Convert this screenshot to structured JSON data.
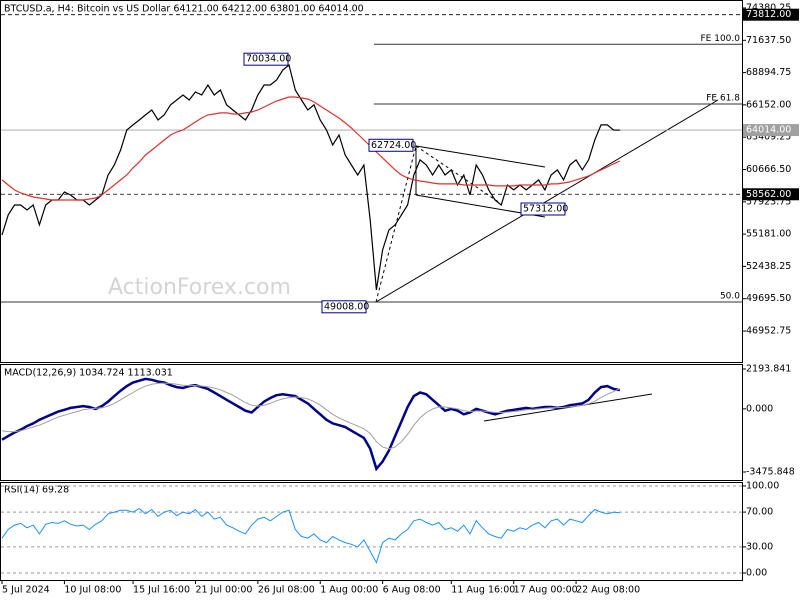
{
  "chart_data": [
    {
      "type": "line",
      "title": "BTCUSD.a, H4:  Bitcoin vs US Dollar  64121.00 64212.00 63801.00 64014.00",
      "watermark": "ActionForex.com",
      "categories": [
        "5 Jul 2024",
        null,
        null,
        null,
        null,
        null,
        null,
        null,
        null,
        null,
        "10 Jul 08:00",
        null,
        null,
        null,
        null,
        null,
        null,
        null,
        null,
        null,
        null,
        "15 Jul 16:00",
        null,
        null,
        null,
        null,
        null,
        null,
        null,
        null,
        null,
        "21 Jul 00:00",
        null,
        null,
        null,
        null,
        null,
        null,
        null,
        null,
        null,
        "26 Jul 08:00",
        null,
        null,
        null,
        null,
        null,
        null,
        null,
        null,
        null,
        "1 Aug 00:00",
        null,
        null,
        null,
        null,
        null,
        null,
        null,
        null,
        null,
        "6 Aug 08:00",
        null,
        null,
        null,
        null,
        null,
        null,
        null,
        null,
        null,
        null,
        "11 Aug 16:00",
        null,
        null,
        null,
        null,
        null,
        null,
        null,
        null,
        null,
        "17 Aug 00:00",
        null,
        null,
        null,
        null,
        null,
        null,
        null,
        null,
        null,
        "22 Aug 08:00",
        null,
        null,
        null,
        null,
        null,
        null,
        null
      ],
      "series": [
        {
          "color": "#000000",
          "values": [
            55110,
            56810,
            57650,
            57650,
            57230,
            57650,
            55960,
            57650,
            58080,
            58080,
            58760,
            58500,
            58080,
            58080,
            57650,
            58080,
            58500,
            60200,
            61050,
            62320,
            64020,
            64450,
            64870,
            65300,
            65720,
            64870,
            65300,
            66150,
            66570,
            66990,
            66570,
            67250,
            66990,
            67840,
            66990,
            67420,
            66150,
            65720,
            65300,
            64870,
            65720,
            66990,
            67840,
            67840,
            68270,
            69120,
            69540,
            67420,
            66570,
            65720,
            66150,
            64870,
            64020,
            62750,
            63600,
            61900,
            61050,
            60200,
            61050,
            56380,
            50440,
            53830,
            55530,
            55960,
            56810,
            57650,
            60200,
            61480,
            61050,
            60200,
            61050,
            60200,
            60630,
            59350,
            60200,
            58500,
            61050,
            60200,
            58930,
            58080,
            57650,
            59350,
            58930,
            59350,
            58930,
            59350,
            59780,
            58930,
            60200,
            60630,
            59780,
            61050,
            61480,
            60630,
            61480,
            63170,
            64450,
            64450,
            64020,
            64014
          ]
        },
        {
          "color": "#e03030",
          "values": [
            59780,
            59350,
            58930,
            58670,
            58500,
            58330,
            58250,
            58160,
            58080,
            58080,
            58080,
            58080,
            58080,
            58080,
            58160,
            58250,
            58500,
            58930,
            59350,
            59780,
            60200,
            60800,
            61310,
            61900,
            62320,
            62750,
            63170,
            63600,
            63850,
            64020,
            64360,
            64700,
            65040,
            65300,
            65380,
            65470,
            65470,
            65380,
            65380,
            65470,
            65550,
            65720,
            65970,
            66230,
            66480,
            66650,
            66820,
            66820,
            66740,
            66650,
            66400,
            66060,
            65720,
            65380,
            65040,
            64620,
            64190,
            63680,
            63170,
            62660,
            62150,
            61650,
            61140,
            60630,
            60200,
            59950,
            59780,
            59690,
            59610,
            59520,
            59440,
            59440,
            59440,
            59440,
            59350,
            59350,
            59350,
            59350,
            59350,
            59270,
            59270,
            59270,
            59270,
            59350,
            59350,
            59350,
            59350,
            59350,
            59440,
            59440,
            59520,
            59610,
            59780,
            59950,
            60120,
            60370,
            60630,
            60880,
            61140,
            61390
          ]
        }
      ],
      "ylim": [
        44320,
        75060
      ],
      "yticks": [
        {
          "value": 74380.25,
          "label": "74380.25"
        },
        {
          "value": 71637.5,
          "label": "71637.50"
        },
        {
          "value": 68894.75,
          "label": "68894.75"
        },
        {
          "value": 66152,
          "label": "66152.00"
        },
        {
          "value": 63409.25,
          "label": "63409.25"
        },
        {
          "value": 60666.5,
          "label": "60666.50"
        },
        {
          "value": 57923.75,
          "label": "57923.75"
        },
        {
          "value": 55181,
          "label": "55181.00"
        },
        {
          "value": 52438.25,
          "label": "52438.25"
        },
        {
          "value": 49695.5,
          "label": "49695.50"
        },
        {
          "value": 46952.75,
          "label": "46952.75"
        }
      ],
      "price_lines": [
        {
          "value": 73812,
          "label": "73812.00",
          "color": "#000000"
        },
        {
          "value": 64014,
          "label": "64014.00",
          "color": "#a0a0a0"
        },
        {
          "value": 58562,
          "label": "58562.00",
          "color": "#000000"
        }
      ],
      "levels": [
        {
          "value": 71300,
          "label": "FE 100.0"
        },
        {
          "value": 66230,
          "label": "FE 61.8"
        },
        {
          "value": 49420,
          "label": "50.0"
        }
      ],
      "annotations": [
        {
          "value": 70034,
          "label": "70034.00"
        },
        {
          "value": 62724,
          "label": "62724.00"
        },
        {
          "value": 49008,
          "label": "49008.00"
        },
        {
          "value": 57312,
          "label": "57312.00"
        }
      ]
    },
    {
      "type": "line",
      "title": "MACD(12,26,9) 1034.724 1113.031",
      "series": [
        {
          "color": "#00008b",
          "width": 2.5,
          "values": [
            -1700,
            -1500,
            -1300,
            -1150,
            -950,
            -800,
            -600,
            -450,
            -300,
            -150,
            -50,
            50,
            100,
            150,
            100,
            0,
            150,
            400,
            700,
            1000,
            1250,
            1450,
            1550,
            1650,
            1600,
            1500,
            1450,
            1300,
            1200,
            1150,
            1250,
            1300,
            1200,
            1100,
            900,
            700,
            500,
            300,
            100,
            -100,
            -200,
            100,
            400,
            600,
            750,
            800,
            750,
            700,
            500,
            300,
            0,
            -300,
            -600,
            -800,
            -900,
            -1000,
            -1200,
            -1400,
            -1600,
            -2200,
            -3300,
            -2900,
            -2300,
            -1500,
            -700,
            100,
            700,
            900,
            800,
            500,
            200,
            -100,
            0,
            -100,
            -300,
            -200,
            0,
            -100,
            -200,
            -300,
            -200,
            -100,
            -50,
            0,
            50,
            0,
            50,
            100,
            100,
            50,
            100,
            200,
            250,
            300,
            500,
            900,
            1200,
            1250,
            1100,
            1034.724
          ]
        },
        {
          "color": "#a0a0a0",
          "width": 1,
          "values": [
            -1200,
            -1250,
            -1250,
            -1200,
            -1100,
            -1000,
            -900,
            -750,
            -600,
            -450,
            -350,
            -250,
            -150,
            -50,
            0,
            30,
            60,
            150,
            300,
            500,
            700,
            900,
            1100,
            1250,
            1350,
            1400,
            1420,
            1400,
            1350,
            1300,
            1280,
            1280,
            1260,
            1220,
            1150,
            1050,
            900,
            750,
            550,
            350,
            200,
            150,
            200,
            300,
            450,
            550,
            620,
            650,
            620,
            550,
            400,
            200,
            -50,
            -300,
            -500,
            -650,
            -800,
            -950,
            -1100,
            -1350,
            -1800,
            -2100,
            -2200,
            -2100,
            -1800,
            -1400,
            -900,
            -500,
            -200,
            0,
            100,
            100,
            50,
            0,
            -100,
            -150,
            -120,
            -120,
            -150,
            -200,
            -200,
            -180,
            -150,
            -100,
            -50,
            -20,
            0,
            30,
            60,
            70,
            80,
            110,
            150,
            200,
            280,
            420,
            620,
            800,
            950,
            1113.031
          ]
        }
      ],
      "ylim": [
        -3916,
        2469
      ],
      "yticks": [
        2193.841,
        {
          "value": 0,
          "label": "0.000"
        },
        -3475.848
      ]
    },
    {
      "type": "line",
      "title": "RSI(14) 69.28",
      "series": [
        {
          "color": "#1e90ff",
          "width": 1,
          "values": [
            40,
            50,
            55,
            57,
            52,
            55,
            45,
            56,
            58,
            57,
            60,
            56,
            54,
            55,
            50,
            56,
            60,
            68,
            70,
            72,
            72,
            70,
            74,
            68,
            73,
            65,
            70,
            72,
            66,
            70,
            68,
            73,
            65,
            70,
            62,
            64,
            55,
            52,
            48,
            45,
            55,
            62,
            64,
            60,
            65,
            70,
            72,
            50,
            42,
            40,
            45,
            38,
            35,
            42,
            38,
            35,
            33,
            30,
            38,
            25,
            12,
            35,
            40,
            38,
            45,
            50,
            60,
            62,
            58,
            55,
            58,
            50,
            52,
            48,
            55,
            45,
            60,
            52,
            45,
            42,
            40,
            50,
            48,
            52,
            50,
            55,
            58,
            52,
            60,
            62,
            55,
            62,
            60,
            58,
            66,
            73,
            70,
            68,
            70,
            69.28
          ]
        }
      ],
      "ylim": [
        -8,
        105.7
      ],
      "yticks": [
        {
          "value": 100,
          "label": "100.00"
        },
        {
          "value": 70,
          "label": "70.00"
        },
        {
          "value": 30,
          "label": "30.00"
        },
        {
          "value": 0,
          "label": "0.00"
        }
      ],
      "grid": true
    }
  ]
}
